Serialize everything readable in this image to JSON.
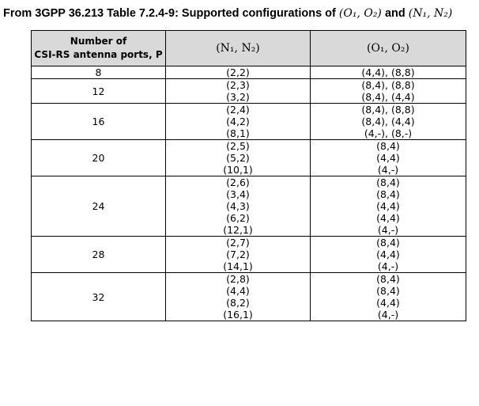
{
  "title": {
    "prefix": "From 3GPP 36.213 Table 7.2.4-9: Supported configurations of ",
    "math1": "(O₁, O₂)",
    "mid": "and ",
    "math2": "(N₁, N₂)"
  },
  "table": {
    "header": {
      "col1_line1": "Number of",
      "col1_line2": "CSI-RS antenna ports, P",
      "col2": "(N₁, N₂)",
      "col3": "(O₁, O₂)"
    },
    "groups": [
      {
        "ports": "8",
        "rows": [
          [
            "(2,2)",
            "(4,4), (8,8)"
          ]
        ]
      },
      {
        "ports": "12",
        "rows": [
          [
            "(2,3)",
            "(8,4), (8,8)"
          ],
          [
            "(3,2)",
            "(8,4), (4,4)"
          ]
        ]
      },
      {
        "ports": "16",
        "rows": [
          [
            "(2,4)",
            "(8,4), (8,8)"
          ],
          [
            "(4,2)",
            "(8,4), (4,4)"
          ],
          [
            "(8,1)",
            "(4,-), (8,-)"
          ]
        ]
      },
      {
        "ports": "20",
        "rows": [
          [
            "(2,5)",
            "(8,4)"
          ],
          [
            "(5,2)",
            "(4,4)"
          ],
          [
            "(10,1)",
            "(4,-)"
          ]
        ]
      },
      {
        "ports": "24",
        "rows": [
          [
            "(2,6)",
            "(8,4)"
          ],
          [
            "(3,4)",
            "(8,4)"
          ],
          [
            "(4,3)",
            "(4,4)"
          ],
          [
            "(6,2)",
            "(4,4)"
          ],
          [
            "(12,1)",
            "(4,-)"
          ]
        ]
      },
      {
        "ports": "28",
        "rows": [
          [
            "(2,7)",
            "(8,4)"
          ],
          [
            "(7,2)",
            "(4,4)"
          ],
          [
            "(14,1)",
            "(4,-)"
          ]
        ]
      },
      {
        "ports": "32",
        "rows": [
          [
            "(2,8)",
            "(8,4)"
          ],
          [
            "(4,4)",
            "(8,4)"
          ],
          [
            "(8,2)",
            "(4,4)"
          ],
          [
            "(16,1)",
            "(4,-)"
          ]
        ]
      }
    ]
  }
}
